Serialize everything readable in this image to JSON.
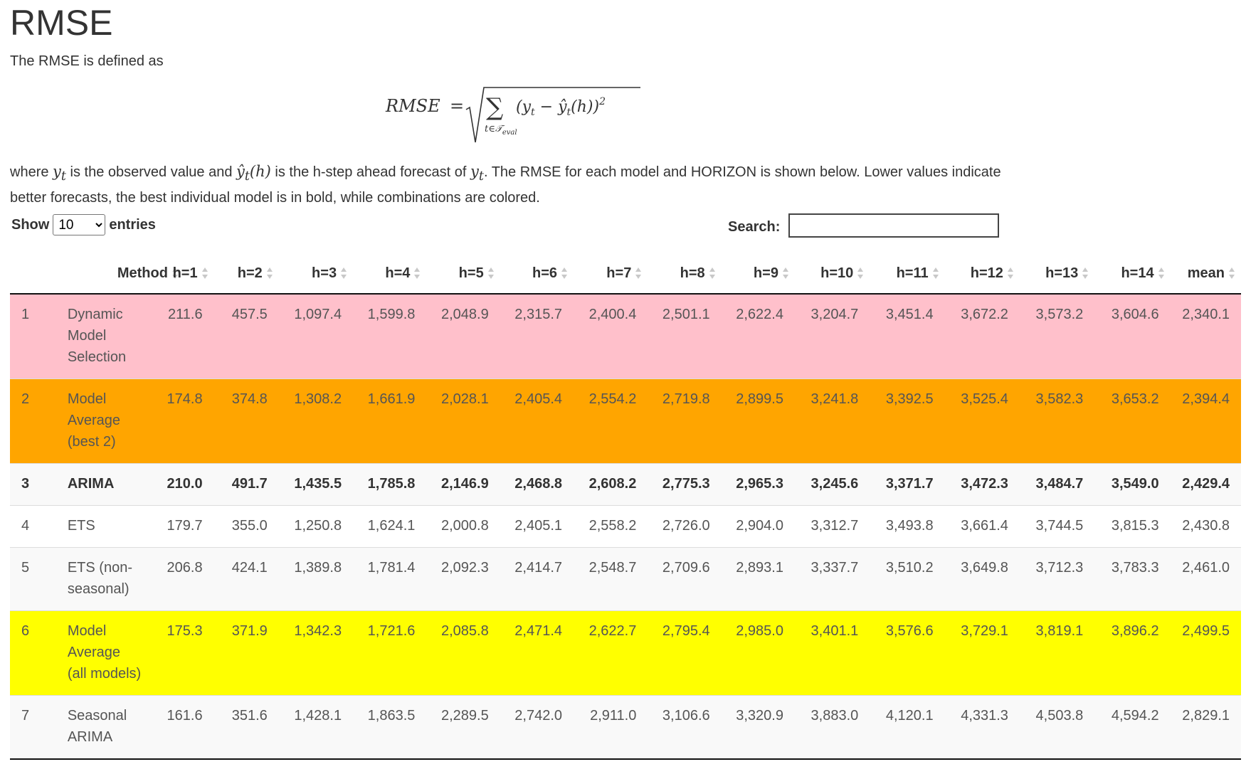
{
  "title": "RMSE",
  "intro": "The RMSE is defined as",
  "formula": {
    "lhs": "RMSE",
    "equals": "=",
    "sum": "∑",
    "term": "(y",
    "term_sub": "t",
    "minus": " − ",
    "hat": "ŷ",
    "hat_sub": "t",
    "h": "(h))",
    "exponent": "2",
    "subscript": "t∈𝒯",
    "subscript_sub": "eval"
  },
  "description": {
    "p1": "where ",
    "y_t": "y",
    "t": "t",
    "p2": " is the observed value and ",
    "yhat": "ŷ",
    "yhat_t": "t",
    "yhat_h": "(h)",
    "p3": " is the h-step ahead forecast of ",
    "p4": ". The RMSE for each model and HORIZON is shown below. Lower values indicate better forecasts, the best individual model is in bold, while combinations are colored."
  },
  "controls": {
    "show_label": "Show",
    "entries_label": "entries",
    "length_selected": "10",
    "search_label": "Search:",
    "search_value": ""
  },
  "colors": {
    "pink": "#ffc0cb",
    "orange": "#ffa500",
    "yellow": "#ffff00",
    "stripe": "#f9f9f9",
    "white": "#ffffff"
  },
  "table": {
    "columns": [
      "",
      "Method",
      "h=1",
      "h=2",
      "h=3",
      "h=4",
      "h=5",
      "h=6",
      "h=7",
      "h=8",
      "h=9",
      "h=10",
      "h=11",
      "h=12",
      "h=13",
      "h=14",
      "mean"
    ],
    "rows": [
      {
        "rank": "1",
        "method": "Dynamic Model Selection",
        "bg": "pink",
        "bold": false,
        "values": [
          "211.6",
          "457.5",
          "1,097.4",
          "1,599.8",
          "2,048.9",
          "2,315.7",
          "2,400.4",
          "2,501.1",
          "2,622.4",
          "3,204.7",
          "3,451.4",
          "3,672.2",
          "3,573.2",
          "3,604.6",
          "2,340.1"
        ]
      },
      {
        "rank": "2",
        "method": "Model Average (best 2)",
        "bg": "orange",
        "bold": false,
        "values": [
          "174.8",
          "374.8",
          "1,308.2",
          "1,661.9",
          "2,028.1",
          "2,405.4",
          "2,554.2",
          "2,719.8",
          "2,899.5",
          "3,241.8",
          "3,392.5",
          "3,525.4",
          "3,582.3",
          "3,653.2",
          "2,394.4"
        ]
      },
      {
        "rank": "3",
        "method": "ARIMA",
        "bg": "stripe",
        "bold": true,
        "values": [
          "210.0",
          "491.7",
          "1,435.5",
          "1,785.8",
          "2,146.9",
          "2,468.8",
          "2,608.2",
          "2,775.3",
          "2,965.3",
          "3,245.6",
          "3,371.7",
          "3,472.3",
          "3,484.7",
          "3,549.0",
          "2,429.4"
        ]
      },
      {
        "rank": "4",
        "method": "ETS",
        "bg": "white",
        "bold": false,
        "values": [
          "179.7",
          "355.0",
          "1,250.8",
          "1,624.1",
          "2,000.8",
          "2,405.1",
          "2,558.2",
          "2,726.0",
          "2,904.0",
          "3,312.7",
          "3,493.8",
          "3,661.4",
          "3,744.5",
          "3,815.3",
          "2,430.8"
        ]
      },
      {
        "rank": "5",
        "method": "ETS (non-seasonal)",
        "bg": "stripe",
        "bold": false,
        "values": [
          "206.8",
          "424.1",
          "1,389.8",
          "1,781.4",
          "2,092.3",
          "2,414.7",
          "2,548.7",
          "2,709.6",
          "2,893.1",
          "3,337.7",
          "3,510.2",
          "3,649.8",
          "3,712.3",
          "3,783.3",
          "2,461.0"
        ]
      },
      {
        "rank": "6",
        "method": "Model Average (all models)",
        "bg": "yellow",
        "bold": false,
        "values": [
          "175.3",
          "371.9",
          "1,342.3",
          "1,721.6",
          "2,085.8",
          "2,471.4",
          "2,622.7",
          "2,795.4",
          "2,985.0",
          "3,401.1",
          "3,576.6",
          "3,729.1",
          "3,819.1",
          "3,896.2",
          "2,499.5"
        ]
      },
      {
        "rank": "7",
        "method": "Seasonal ARIMA",
        "bg": "stripe",
        "bold": false,
        "values": [
          "161.6",
          "351.6",
          "1,428.1",
          "1,863.5",
          "2,289.5",
          "2,742.0",
          "2,911.0",
          "3,106.6",
          "3,320.9",
          "3,883.0",
          "4,120.1",
          "4,331.3",
          "4,503.8",
          "4,594.2",
          "2,829.1"
        ]
      }
    ]
  }
}
